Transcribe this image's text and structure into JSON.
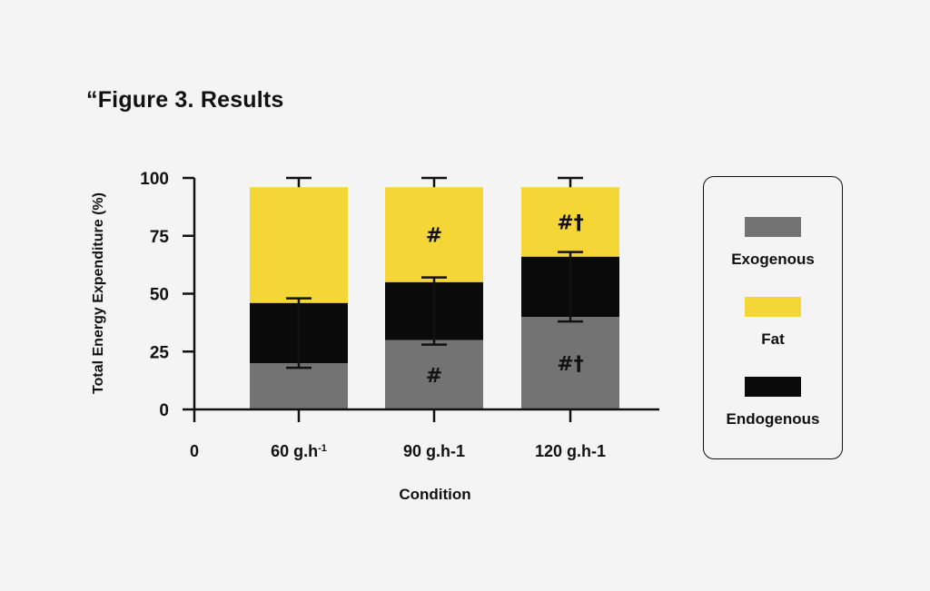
{
  "figure_title": "“Figure 3. Results",
  "colors": {
    "exogenous": "#737373",
    "fat": "#f4d737",
    "endogenous": "#0a0a0a",
    "axis": "#111111"
  },
  "chart_data": {
    "type": "bar",
    "stacked": true,
    "title": "Figure 3. Results",
    "xlabel": "Condition",
    "ylabel": "Total Energy Expenditure (%)",
    "ylim": [
      0,
      100
    ],
    "yticks": [
      0,
      25,
      50,
      75,
      100
    ],
    "x_origin_label": "0",
    "categories": [
      "60 g.h",
      "90 g.h-1",
      "120 g.h-1"
    ],
    "category_superscripts": [
      "-1",
      "",
      ""
    ],
    "series": [
      {
        "name": "Exogenous",
        "key": "exogenous",
        "values": [
          20,
          30,
          40
        ],
        "error_low": [
          18,
          28,
          38
        ]
      },
      {
        "name": "Endogenous",
        "key": "endogenous",
        "values": [
          26,
          25,
          26
        ],
        "error_high": [
          48,
          57,
          68
        ]
      },
      {
        "name": "Fat",
        "key": "fat",
        "values": [
          50,
          41,
          30
        ],
        "error_high": [
          100,
          100,
          100
        ]
      }
    ],
    "error_bars": [
      {
        "category": "60 g.h",
        "low": 18,
        "high": 48,
        "cap_top": 100
      },
      {
        "category": "90 g.h-1",
        "low": 28,
        "high": 57,
        "cap_top": 100
      },
      {
        "category": "120 g.h-1",
        "low": 38,
        "high": 68,
        "cap_top": 100
      }
    ],
    "annotations": [
      {
        "category": "90 g.h-1",
        "series": "Fat",
        "text": "#"
      },
      {
        "category": "90 g.h-1",
        "series": "Exogenous",
        "text": "#"
      },
      {
        "category": "120 g.h-1",
        "series": "Fat",
        "text": "#†"
      },
      {
        "category": "120 g.h-1",
        "series": "Exogenous",
        "text": "#†"
      }
    ],
    "legend": {
      "position": "right",
      "entries": [
        {
          "label": "Exogenous",
          "key": "exogenous"
        },
        {
          "label": "Fat",
          "key": "fat"
        },
        {
          "label": "Endogenous",
          "key": "endogenous"
        }
      ]
    }
  }
}
